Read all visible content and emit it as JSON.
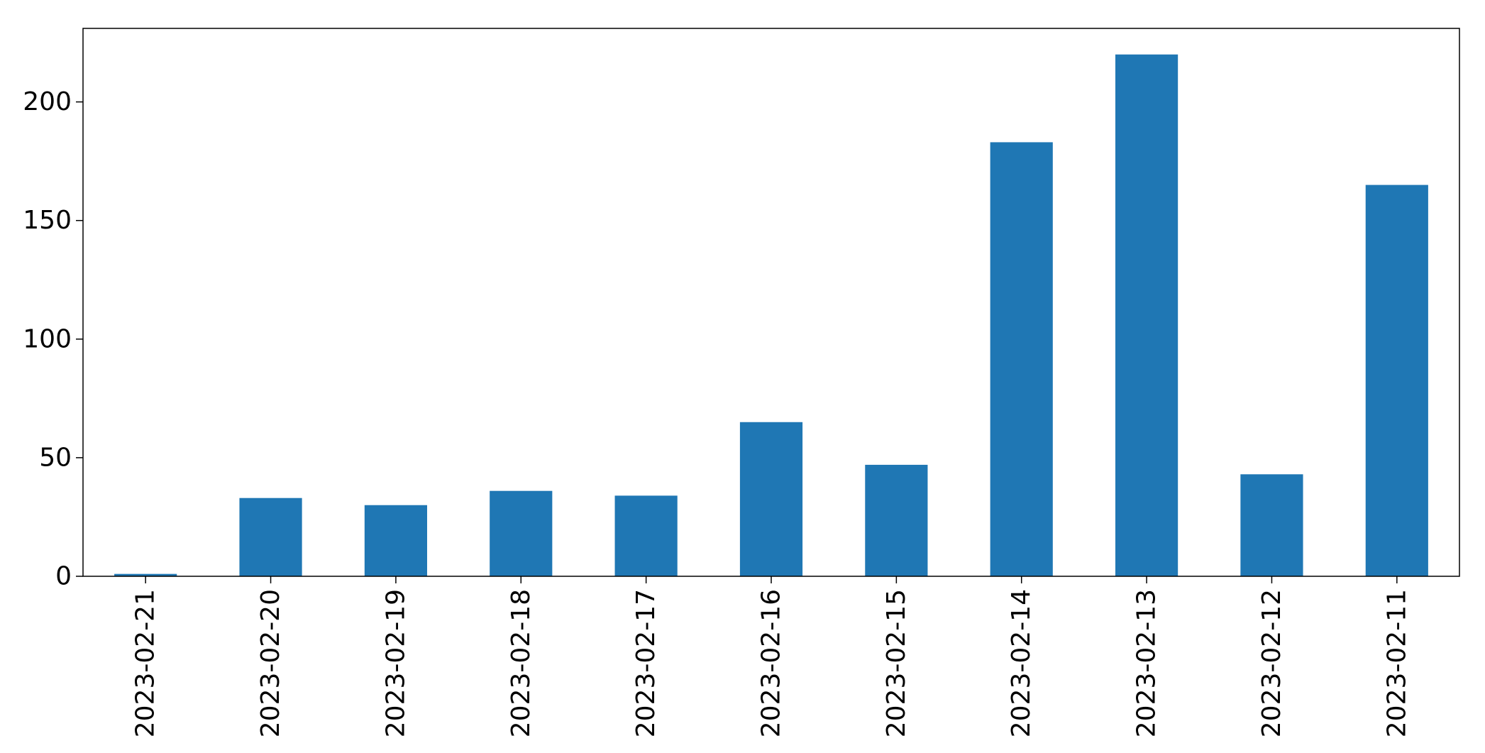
{
  "chart_data": {
    "type": "bar",
    "title": "",
    "xlabel": "",
    "ylabel": "",
    "categories": [
      "2023-02-21",
      "2023-02-20",
      "2023-02-19",
      "2023-02-18",
      "2023-02-17",
      "2023-02-16",
      "2023-02-15",
      "2023-02-14",
      "2023-02-13",
      "2023-02-12",
      "2023-02-11"
    ],
    "values": [
      1,
      33,
      30,
      36,
      34,
      65,
      47,
      183,
      220,
      43,
      165
    ],
    "ylim": [
      0,
      231
    ],
    "yticks": [
      0,
      50,
      100,
      150,
      200
    ],
    "ytick_labels": [
      "0",
      "50",
      "100",
      "150",
      "200"
    ],
    "grid": false,
    "legend": "none",
    "bar_color": "#1f77b4"
  }
}
